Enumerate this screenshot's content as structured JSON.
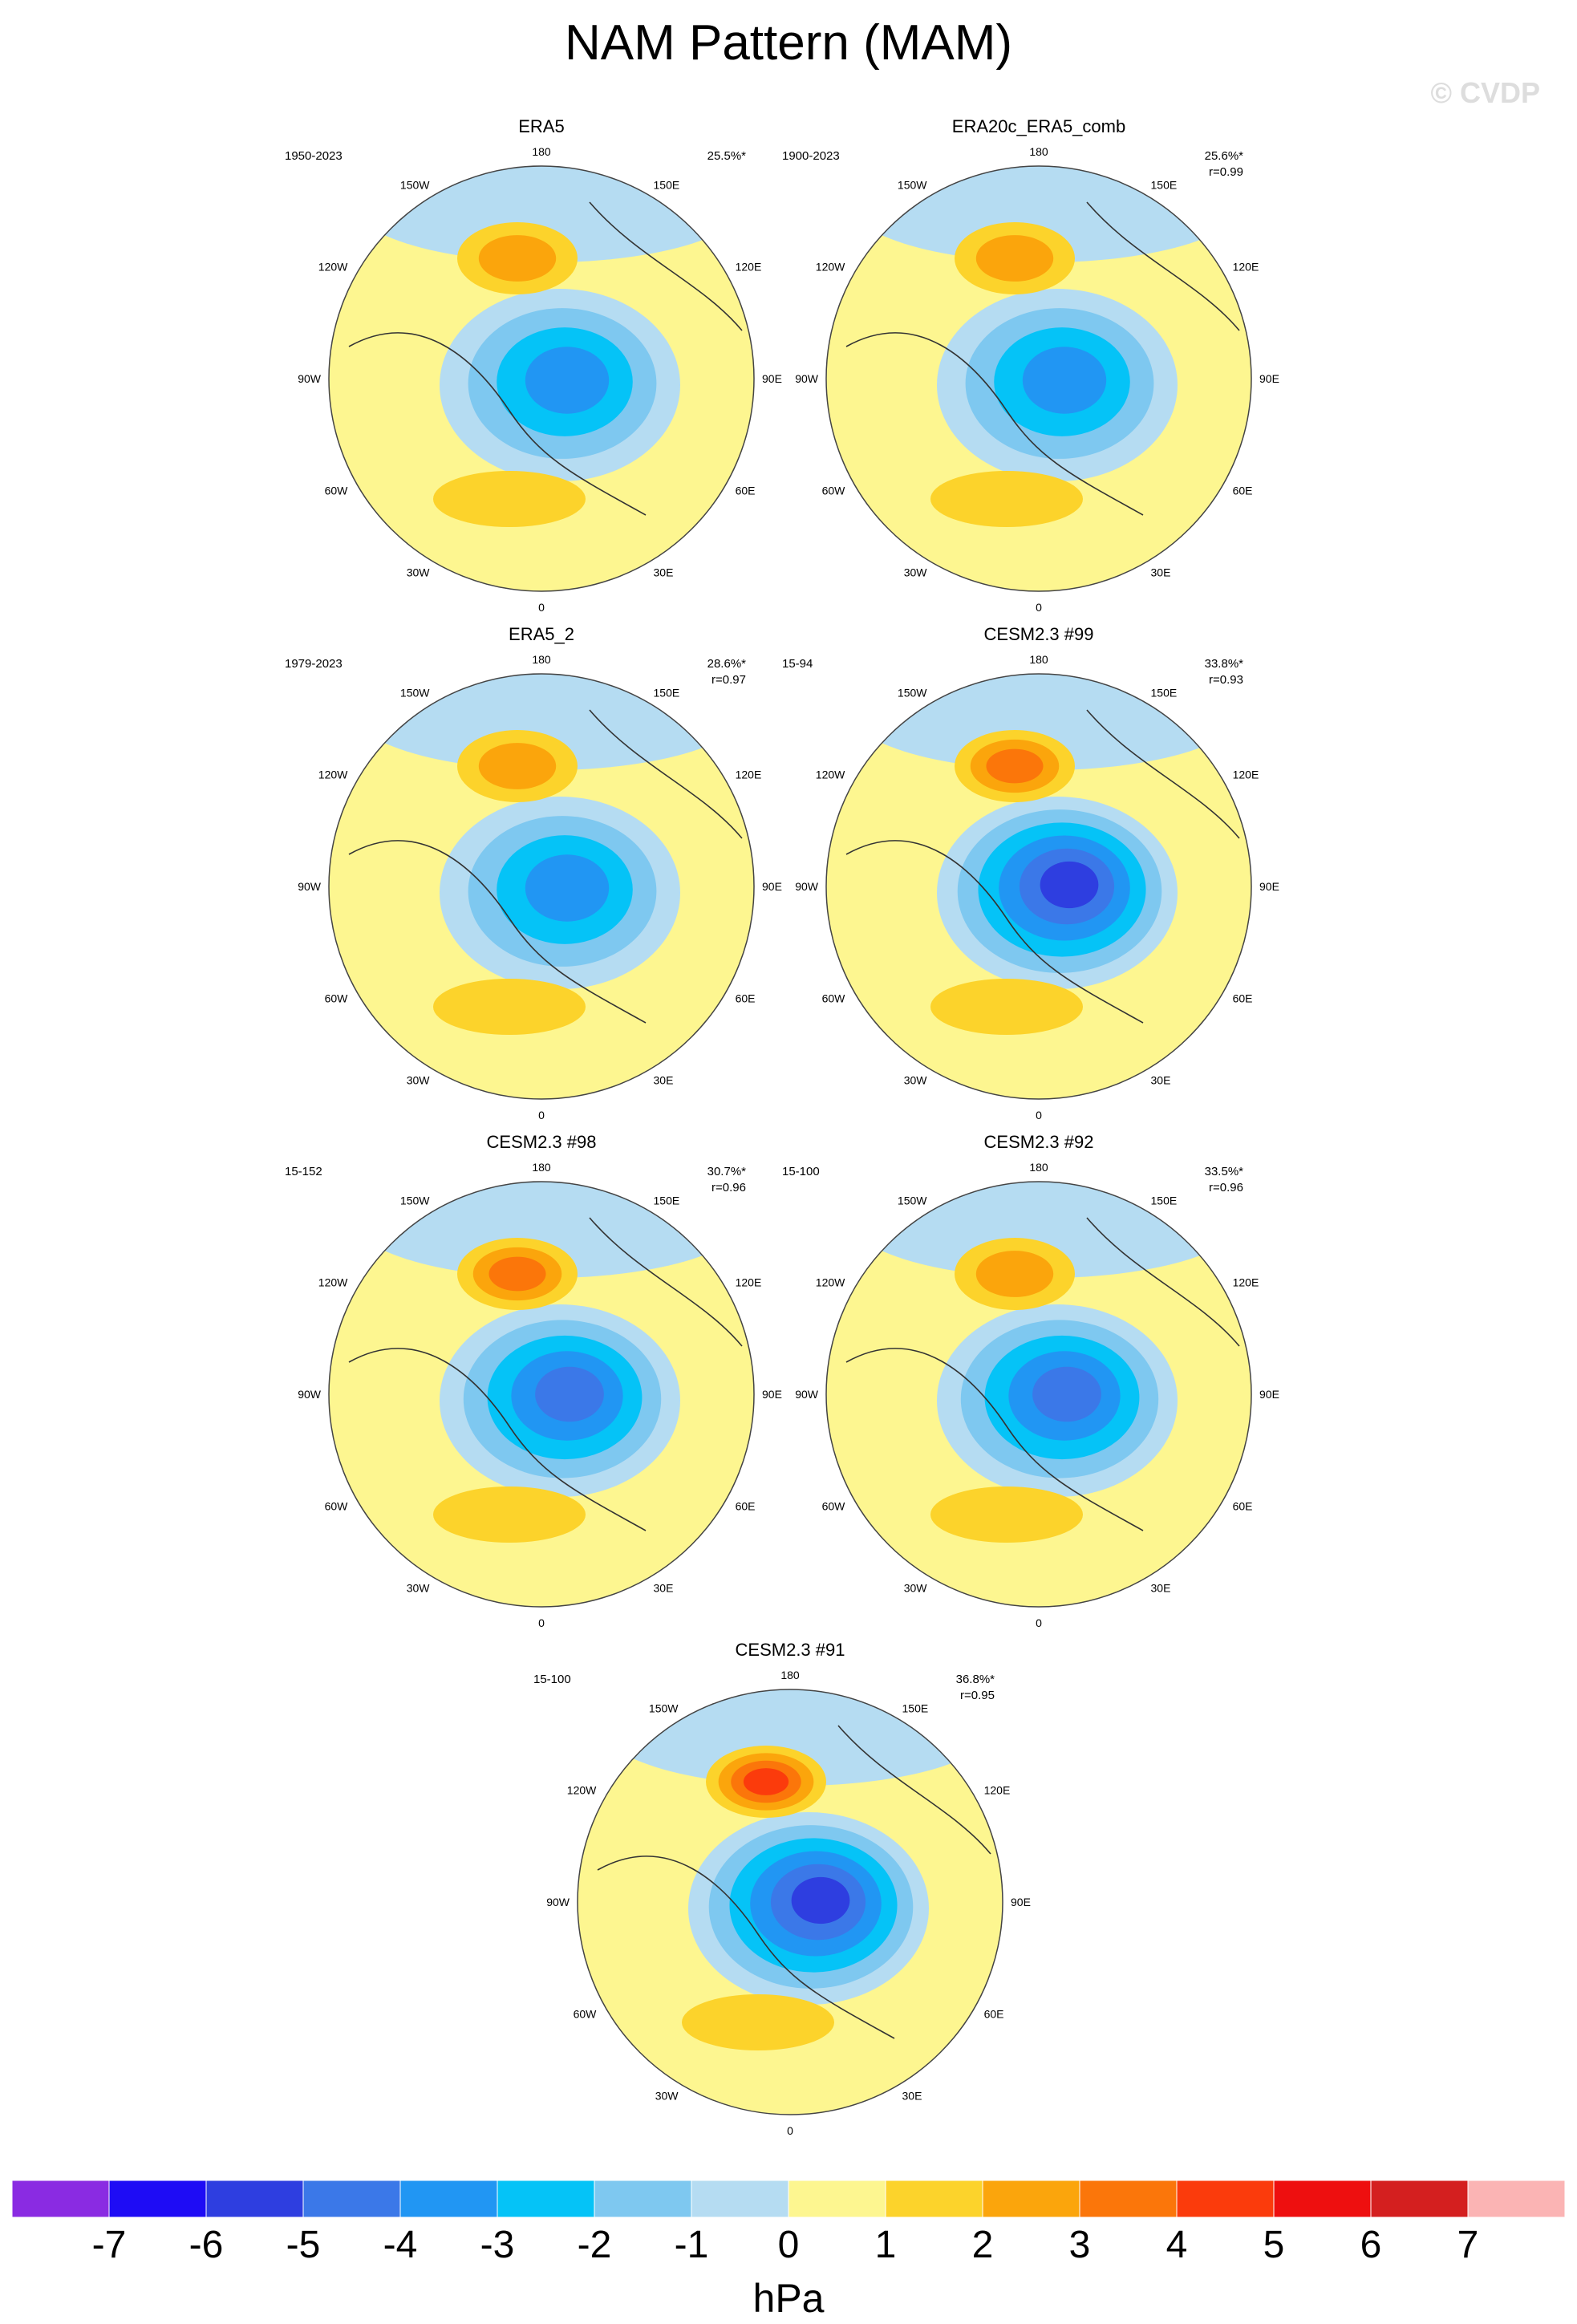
{
  "title": "NAM Pattern (MAM)",
  "watermark": "© CVDP",
  "colorbar": {
    "unit": "hPa",
    "levels": [
      "-7",
      "-6",
      "-5",
      "-4",
      "-3",
      "-2",
      "-1",
      "0",
      "1",
      "2",
      "3",
      "4",
      "5",
      "6",
      "7"
    ],
    "colors": [
      "#8a2be2",
      "#1e0cf5",
      "#2e3ee0",
      "#3b78e8",
      "#2196f3",
      "#05c3f7",
      "#7ec8f0",
      "#b5dcf2",
      "#fdf690",
      "#fcd32b",
      "#fba50c",
      "#fb760a",
      "#fb3b0c",
      "#ee0f0f",
      "#d41f1f",
      "#fbb4b4"
    ]
  },
  "chart_data": [
    {
      "type": "heatmap",
      "title": "ERA5",
      "period": "1950-2023",
      "pct_var": "25.5%*",
      "corr": "",
      "lat_labels": {
        "top": "180",
        "bottom": "0",
        "left": "90W",
        "right": "90E"
      },
      "lon_labels": [
        "150W",
        "150E",
        "120W",
        "120E",
        "60W",
        "60E",
        "30W",
        "30E"
      ],
      "min_hPa": -4,
      "max_hPa": 2
    },
    {
      "type": "heatmap",
      "title": "ERA20c_ERA5_comb",
      "period": "1900-2023",
      "pct_var": "25.6%*",
      "corr": "r=0.99",
      "lat_labels": {
        "top": "180",
        "bottom": "0",
        "left": "90W",
        "right": "90E"
      },
      "lon_labels": [
        "150W",
        "150E",
        "120W",
        "120E",
        "60W",
        "60E",
        "30W",
        "30E"
      ],
      "min_hPa": -4,
      "max_hPa": 2
    },
    {
      "type": "heatmap",
      "title": "ERA5_2",
      "period": "1979-2023",
      "pct_var": "28.6%*",
      "corr": "r=0.97",
      "lat_labels": {
        "top": "180",
        "bottom": "0",
        "left": "90W",
        "right": "90E"
      },
      "lon_labels": [
        "150W",
        "150E",
        "120W",
        "120E",
        "60W",
        "60E",
        "30W",
        "30E"
      ],
      "min_hPa": -4,
      "max_hPa": 2
    },
    {
      "type": "heatmap",
      "title": "CESM2.3 #99",
      "period": "15-94",
      "pct_var": "33.8%*",
      "corr": "r=0.93",
      "lat_labels": {
        "top": "180",
        "bottom": "0",
        "left": "90W",
        "right": "90E"
      },
      "lon_labels": [
        "150W",
        "150E",
        "120W",
        "120E",
        "60W",
        "60E",
        "30W",
        "30E"
      ],
      "min_hPa": -6,
      "max_hPa": 3
    },
    {
      "type": "heatmap",
      "title": "CESM2.3 #98",
      "period": "15-152",
      "pct_var": "30.7%*",
      "corr": "r=0.96",
      "lat_labels": {
        "top": "180",
        "bottom": "0",
        "left": "90W",
        "right": "90E"
      },
      "lon_labels": [
        "150W",
        "150E",
        "120W",
        "120E",
        "60W",
        "60E",
        "30W",
        "30E"
      ],
      "min_hPa": -5,
      "max_hPa": 3
    },
    {
      "type": "heatmap",
      "title": "CESM2.3 #92",
      "period": "15-100",
      "pct_var": "33.5%*",
      "corr": "r=0.96",
      "lat_labels": {
        "top": "180",
        "bottom": "0",
        "left": "90W",
        "right": "90E"
      },
      "lon_labels": [
        "150W",
        "150E",
        "120W",
        "120E",
        "60W",
        "60E",
        "30W",
        "30E"
      ],
      "min_hPa": -5,
      "max_hPa": 2
    },
    {
      "type": "heatmap",
      "title": "CESM2.3 #91",
      "period": "15-100",
      "pct_var": "36.8%*",
      "corr": "r=0.95",
      "lat_labels": {
        "top": "180",
        "bottom": "0",
        "left": "90W",
        "right": "90E"
      },
      "lon_labels": [
        "150W",
        "150E",
        "120W",
        "120E",
        "60W",
        "60E",
        "30W",
        "30E"
      ],
      "min_hPa": -6,
      "max_hPa": 4
    }
  ]
}
